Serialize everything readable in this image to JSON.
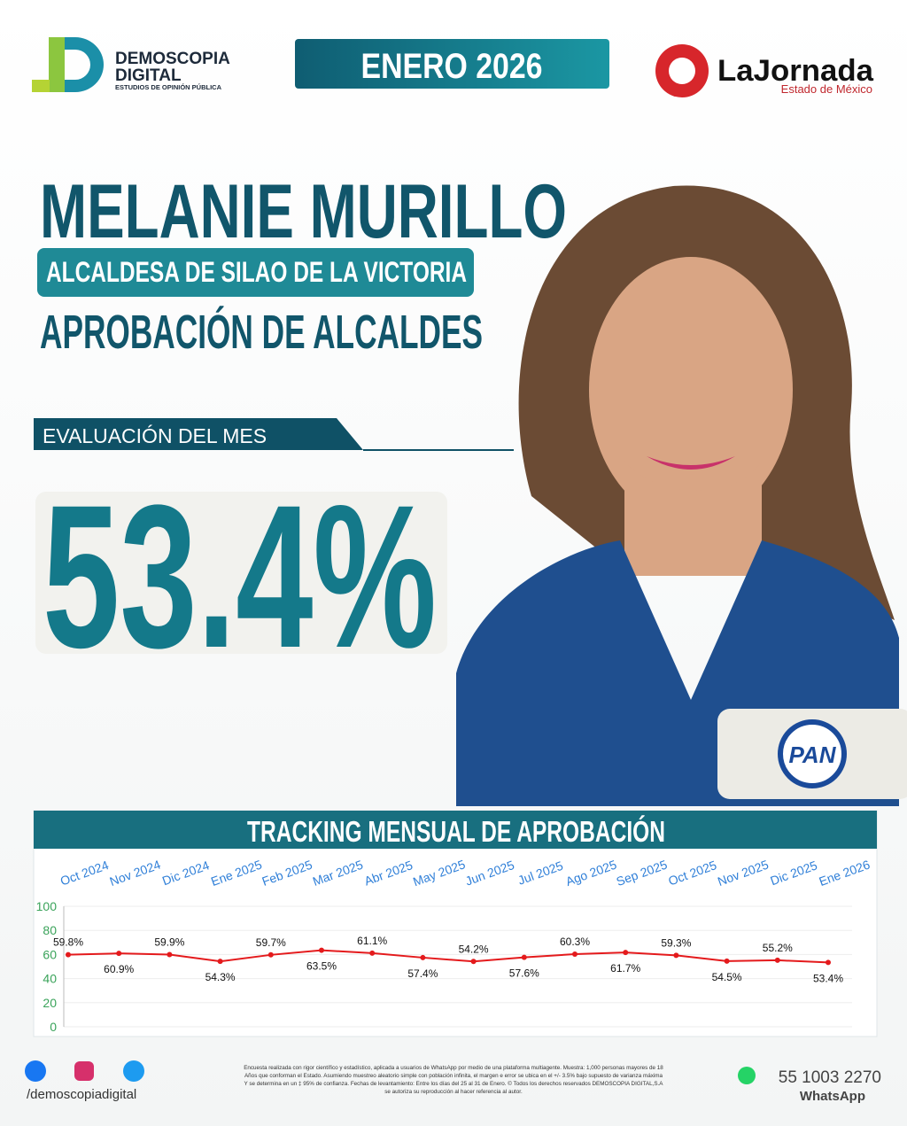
{
  "header": {
    "brand": "DEMOSCOPIA",
    "brand2": "DIGITAL",
    "brand_tagline": "ESTUDIOS DE OPINIÓN PÚBLICA",
    "period": "ENERO 2026",
    "newspaper": "LaJornada",
    "newspaper_region": "Estado de México"
  },
  "profile": {
    "name": "MELANIE MURILLO",
    "role": "ALCALDESA DE SILAO DE LA VICTORIA",
    "survey": "APROBACIÓN DE ALCALDES",
    "score_label": "EVALUACIÓN DEL MES",
    "score": "53.4%",
    "party": "PAN"
  },
  "chart_data": {
    "type": "line",
    "title": "TRACKING MENSUAL DE APROBACIÓN",
    "categories": [
      "Oct 2024",
      "Nov 2024",
      "Dic 2024",
      "Ene 2025",
      "Feb 2025",
      "Mar 2025",
      "Abr 2025",
      "May 2025",
      "Jun 2025",
      "Jul 2025",
      "Ago 2025",
      "Sep 2025",
      "Oct 2025",
      "Nov 2025",
      "Dic 2025",
      "Ene 2026"
    ],
    "values": [
      59.8,
      60.9,
      59.9,
      54.3,
      59.7,
      63.5,
      61.1,
      57.4,
      54.2,
      57.6,
      60.3,
      61.7,
      59.3,
      54.5,
      55.2,
      53.4
    ],
    "value_labels": [
      "59.8%",
      "60.9%",
      "59.9%",
      "54.3%",
      "59.7%",
      "63.5%",
      "61.1%",
      "57.4%",
      "54.2%",
      "57.6%",
      "60.3%",
      "61.7%",
      "59.3%",
      "54.5%",
      "55.2%",
      "53.4%"
    ],
    "color": "#e41a1c",
    "ylim": [
      0,
      100
    ],
    "yticks": [
      0,
      20,
      40,
      60,
      80,
      100
    ],
    "grid": true
  },
  "footer": {
    "social": "/demoscopiadigital",
    "disclaimer": [
      "Encuesta realizada con rigor científico y estadístico, aplicada a usuarios de WhatsApp por medio de una plataforma multiagente. Muestra: 1,000 personas mayores de 18",
      "Años que conforman el Estado. Asumiendo muestreo aleatorio simple con población infinita, el margen e error se ubica en el +/- 3.5% bajo supuesto de varianza máxima",
      "Y se determina en un ‡ 95% de confianza. Fechas de levantamiento: Entre los días del 25 al 31 de Enero. © Todos los derechos reservados DEMOSCOPIA DIGITAL,S.A",
      "se autoriza su reproducción al hacer referencia al autor."
    ],
    "phone": "55 1003 2270",
    "phone_app": "WhatsApp"
  }
}
